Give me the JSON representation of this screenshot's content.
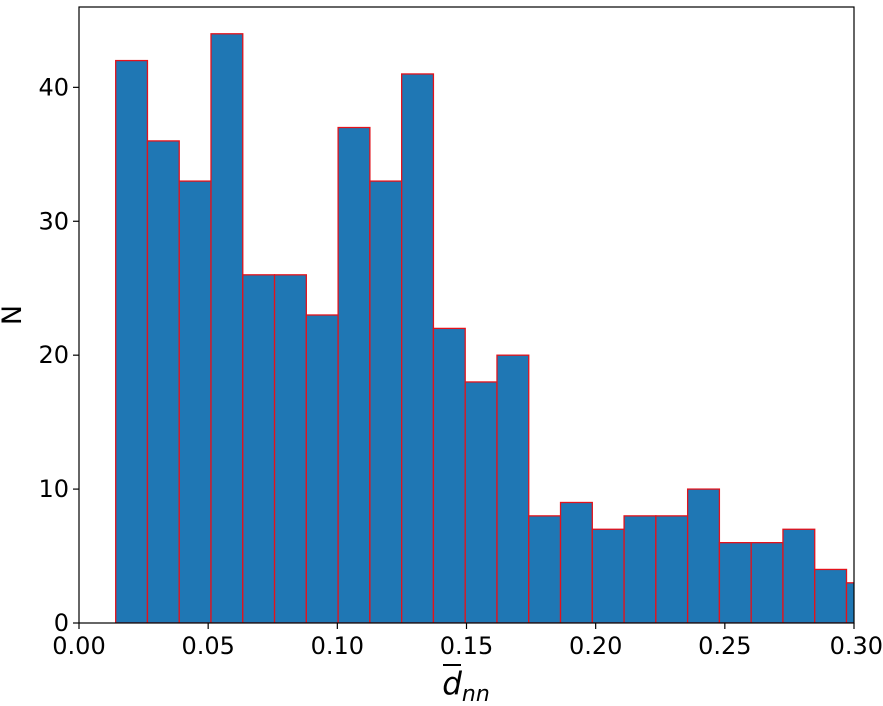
{
  "chart_data": {
    "type": "bar",
    "subtype": "histogram",
    "xlabel_base": "d",
    "xlabel_sub": "nn",
    "ylabel": "N",
    "xlim": [
      0.0,
      0.3
    ],
    "ylim": [
      0,
      46
    ],
    "xticks": [
      0.0,
      0.05,
      0.1,
      0.15,
      0.2,
      0.25,
      0.3
    ],
    "xtick_labels": [
      "0.00",
      "0.05",
      "0.10",
      "0.15",
      "0.20",
      "0.25",
      "0.30"
    ],
    "yticks": [
      0,
      10,
      20,
      30,
      40
    ],
    "ytick_labels": [
      "0",
      "10",
      "20",
      "30",
      "40"
    ],
    "bins": [
      {
        "x0": 0.0142,
        "x1": 0.0265,
        "count": 42
      },
      {
        "x0": 0.0265,
        "x1": 0.0388,
        "count": 36
      },
      {
        "x0": 0.0388,
        "x1": 0.0511,
        "count": 33
      },
      {
        "x0": 0.0511,
        "x1": 0.0634,
        "count": 44
      },
      {
        "x0": 0.0634,
        "x1": 0.0757,
        "count": 26
      },
      {
        "x0": 0.0757,
        "x1": 0.088,
        "count": 26
      },
      {
        "x0": 0.088,
        "x1": 0.1003,
        "count": 23
      },
      {
        "x0": 0.1003,
        "x1": 0.1126,
        "count": 37
      },
      {
        "x0": 0.1126,
        "x1": 0.1249,
        "count": 33
      },
      {
        "x0": 0.1249,
        "x1": 0.1372,
        "count": 41
      },
      {
        "x0": 0.1372,
        "x1": 0.1495,
        "count": 22
      },
      {
        "x0": 0.1495,
        "x1": 0.1618,
        "count": 18
      },
      {
        "x0": 0.1618,
        "x1": 0.1741,
        "count": 20
      },
      {
        "x0": 0.1741,
        "x1": 0.1864,
        "count": 8
      },
      {
        "x0": 0.1864,
        "x1": 0.1987,
        "count": 9
      },
      {
        "x0": 0.1987,
        "x1": 0.211,
        "count": 7
      },
      {
        "x0": 0.211,
        "x1": 0.2233,
        "count": 8
      },
      {
        "x0": 0.2233,
        "x1": 0.2356,
        "count": 8
      },
      {
        "x0": 0.2356,
        "x1": 0.2479,
        "count": 10
      },
      {
        "x0": 0.2479,
        "x1": 0.2602,
        "count": 6
      },
      {
        "x0": 0.2602,
        "x1": 0.2725,
        "count": 6
      },
      {
        "x0": 0.2725,
        "x1": 0.2848,
        "count": 7
      },
      {
        "x0": 0.2848,
        "x1": 0.2971,
        "count": 4
      },
      {
        "x0": 0.2971,
        "x1": 0.3094,
        "count": 3
      }
    ],
    "bar_fill": "#1f77b4",
    "bar_edge": "#e3121b",
    "grid": false,
    "legend": "none"
  }
}
